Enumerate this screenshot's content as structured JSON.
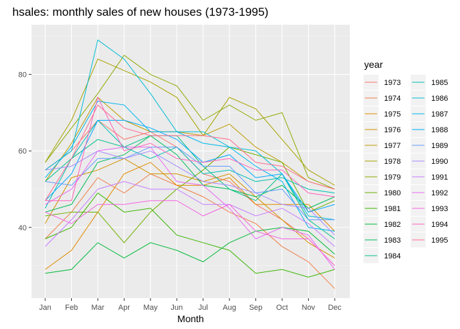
{
  "chart_data": {
    "type": "line",
    "title": "hsales: monthly sales of new houses (1973-1995)",
    "xlabel": "Month",
    "ylabel": "",
    "legend_title": "year",
    "legend_position": "right",
    "grid": true,
    "categories": [
      "Jan",
      "Feb",
      "Mar",
      "Apr",
      "May",
      "Jun",
      "Jul",
      "Aug",
      "Sep",
      "Oct",
      "Nov",
      "Dec"
    ],
    "ylim": [
      21.5,
      93
    ],
    "yticks": [
      40,
      60,
      80
    ],
    "series": [
      {
        "name": "1973",
        "color": "#F8766D",
        "values": [
          55,
          60,
          68,
          63,
          65,
          61,
          54,
          52,
          46,
          42,
          37,
          30
        ]
      },
      {
        "name": "1974",
        "color": "#EF7F49",
        "values": [
          37,
          44,
          53,
          49,
          54,
          51,
          48,
          44,
          41,
          35,
          31,
          24
        ]
      },
      {
        "name": "1975",
        "color": "#E28A00",
        "values": [
          29,
          34,
          44,
          54,
          57,
          51,
          51,
          53,
          46,
          46,
          46,
          39
        ]
      },
      {
        "name": "1976",
        "color": "#D29200",
        "values": [
          41,
          53,
          55,
          58,
          54,
          54,
          52,
          54,
          48,
          42,
          36,
          32
        ]
      },
      {
        "name": "1977",
        "color": "#BE9C00",
        "values": [
          52,
          62,
          74,
          68,
          65,
          65,
          64,
          67,
          61,
          57,
          52,
          50
        ]
      },
      {
        "name": "1978",
        "color": "#A7A300",
        "values": [
          57,
          68,
          84,
          81,
          78,
          74,
          64,
          74,
          71,
          63,
          55,
          51
        ]
      },
      {
        "name": "1979",
        "color": "#8DAA00",
        "values": [
          57,
          66,
          75,
          85,
          80,
          77,
          68,
          72,
          68,
          70,
          53,
          50
        ]
      },
      {
        "name": "1980",
        "color": "#6DB000",
        "values": [
          43,
          44,
          44,
          36,
          44,
          50,
          55,
          61,
          59,
          57,
          44,
          47
        ]
      },
      {
        "name": "1981",
        "color": "#39B600",
        "values": [
          37,
          40,
          49,
          44,
          45,
          38,
          36,
          34,
          28,
          29,
          27,
          29
        ]
      },
      {
        "name": "1982",
        "color": "#00BA38",
        "values": [
          28,
          29,
          36,
          32,
          36,
          34,
          31,
          36,
          39,
          40,
          39,
          33
        ]
      },
      {
        "name": "1983",
        "color": "#00BC59",
        "values": [
          44,
          46,
          57,
          59,
          64,
          59,
          51,
          50,
          48,
          51,
          45,
          48
        ]
      },
      {
        "name": "1984",
        "color": "#00C08B",
        "values": [
          52,
          58,
          63,
          61,
          64,
          64,
          56,
          50,
          47,
          54,
          42,
          37
        ]
      },
      {
        "name": "1985",
        "color": "#00C0B2",
        "values": [
          45,
          58,
          68,
          61,
          58,
          61,
          54,
          55,
          52,
          53,
          50,
          49
        ]
      },
      {
        "name": "1986",
        "color": "#00BCD6",
        "values": [
          55,
          60,
          89,
          84,
          75,
          65,
          65,
          61,
          60,
          54,
          43,
          42
        ]
      },
      {
        "name": "1987",
        "color": "#00B5EE",
        "values": [
          53,
          61,
          73,
          72,
          65,
          65,
          62,
          61,
          56,
          52,
          40,
          39
        ]
      },
      {
        "name": "1988",
        "color": "#00A9FF",
        "values": [
          47,
          54,
          68,
          68,
          66,
          63,
          57,
          59,
          53,
          54,
          44,
          46
        ]
      },
      {
        "name": "1989",
        "color": "#619CFF",
        "values": [
          52,
          51,
          58,
          58,
          61,
          61,
          56,
          56,
          49,
          50,
          42,
          42
        ]
      },
      {
        "name": "1990",
        "color": "#A58AFF",
        "values": [
          55,
          56,
          60,
          58,
          60,
          56,
          52,
          51,
          49,
          46,
          45,
          38
        ]
      },
      {
        "name": "1991",
        "color": "#C77CFF",
        "values": [
          35,
          42,
          50,
          52,
          50,
          50,
          46,
          46,
          43,
          45,
          41,
          35
        ]
      },
      {
        "name": "1992",
        "color": "#E76BF3",
        "values": [
          46,
          50,
          60,
          61,
          61,
          52,
          51,
          45,
          37,
          40,
          38,
          29
        ]
      },
      {
        "name": "1993",
        "color": "#F564E3",
        "values": [
          44,
          41,
          46,
          46,
          47,
          47,
          43,
          46,
          39,
          37,
          37,
          30
        ]
      },
      {
        "name": "1994",
        "color": "#FF62BC",
        "values": [
          47,
          47,
          74,
          60,
          62,
          58,
          57,
          58,
          55,
          55,
          49,
          48
        ]
      },
      {
        "name": "1995",
        "color": "#FF6C90",
        "values": [
          47,
          58,
          72,
          66,
          64,
          64,
          64,
          63,
          57,
          56,
          52,
          50
        ]
      }
    ]
  }
}
